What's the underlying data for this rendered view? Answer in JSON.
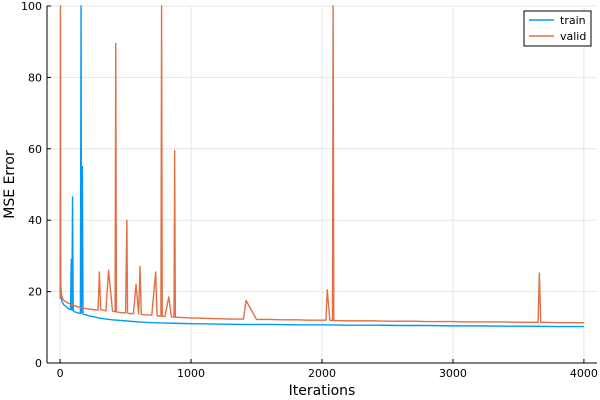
{
  "chart_data": {
    "type": "line",
    "title": "",
    "xlabel": "Iterations",
    "ylabel": "MSE Error",
    "xlim": [
      -100,
      4100
    ],
    "ylim": [
      0,
      100
    ],
    "xticks": [
      0,
      1000,
      2000,
      3000,
      4000
    ],
    "yticks": [
      0,
      20,
      40,
      60,
      80,
      100
    ],
    "grid": true,
    "legend_position": "top-right",
    "series": [
      {
        "name": "train",
        "color": "#009AFA",
        "x": [
          0,
          2,
          5,
          8,
          12,
          18,
          25,
          30,
          40,
          50,
          60,
          70,
          80,
          85,
          90,
          95,
          100,
          110,
          120,
          140,
          155,
          160,
          163,
          170,
          175,
          180,
          200,
          220,
          250,
          300,
          350,
          400,
          500,
          600,
          700,
          800,
          900,
          1000,
          1200,
          1400,
          1600,
          1800,
          2000,
          2200,
          2400,
          2600,
          2800,
          3000,
          3200,
          3400,
          3600,
          3800,
          4000
        ],
        "y": [
          28,
          25,
          22,
          19,
          17.5,
          17,
          16.5,
          16.2,
          16,
          15.6,
          15.3,
          15.1,
          15,
          29,
          14.8,
          46.5,
          14.6,
          14.4,
          14.2,
          14,
          13.9,
          100,
          14,
          55,
          13.7,
          13.6,
          13.5,
          13.2,
          13,
          12.6,
          12.3,
          12.1,
          11.8,
          11.5,
          11.3,
          11.2,
          11.1,
          11,
          10.9,
          10.8,
          10.8,
          10.7,
          10.7,
          10.6,
          10.6,
          10.5,
          10.5,
          10.4,
          10.4,
          10.3,
          10.3,
          10.2,
          10.2
        ]
      },
      {
        "name": "valid",
        "color": "#E26F46",
        "x": [
          0,
          3,
          5,
          10,
          20,
          30,
          50,
          80,
          100,
          130,
          160,
          200,
          250,
          290,
          300,
          310,
          350,
          370,
          400,
          420,
          425,
          430,
          450,
          500,
          510,
          515,
          520,
          560,
          580,
          600,
          610,
          620,
          650,
          700,
          730,
          740,
          750,
          770,
          775,
          780,
          800,
          830,
          850,
          870,
          875,
          880,
          900,
          950,
          1000,
          1050,
          1100,
          1200,
          1300,
          1400,
          1420,
          1500,
          1600,
          1700,
          1800,
          1900,
          2000,
          2030,
          2040,
          2060,
          2080,
          2085,
          2090,
          2100,
          2200,
          2300,
          2400,
          2500,
          2600,
          2700,
          2800,
          2900,
          3000,
          3100,
          3200,
          3300,
          3400,
          3500,
          3600,
          3650,
          3660,
          3670,
          3700,
          3800,
          3900,
          3980,
          4000
        ],
        "y": [
          18,
          100,
          22,
          19,
          18,
          17.5,
          17,
          16.5,
          16.2,
          15.8,
          15.5,
          15.2,
          15,
          14.8,
          25.5,
          15,
          14.6,
          26,
          14.5,
          14.4,
          89.5,
          14.3,
          14.2,
          14,
          40,
          14,
          13.9,
          13.8,
          22,
          13.7,
          27,
          13.6,
          13.5,
          13.4,
          25.5,
          13.3,
          13.2,
          13.1,
          100,
          13.1,
          13,
          18.5,
          12.9,
          12.9,
          59.5,
          12.8,
          12.8,
          12.7,
          12.6,
          12.6,
          12.5,
          12.4,
          12.3,
          12.3,
          17.5,
          12.2,
          12.2,
          12.1,
          12.1,
          12,
          12,
          12,
          20.5,
          12,
          11.9,
          100,
          11.9,
          11.9,
          11.8,
          11.8,
          11.8,
          11.7,
          11.7,
          11.7,
          11.6,
          11.6,
          11.6,
          11.5,
          11.5,
          11.5,
          11.5,
          11.4,
          11.4,
          11.4,
          25.2,
          11.4,
          11.4,
          11.3,
          11.3,
          11.3,
          11.3
        ]
      }
    ]
  }
}
